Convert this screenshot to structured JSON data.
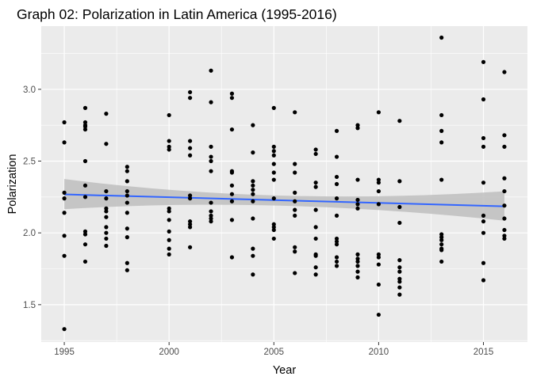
{
  "chart_data": {
    "type": "scatter",
    "title": "Graph 02: Polarization in Latin America (1995-2016)",
    "xlabel": "Year",
    "ylabel": "Polarization",
    "xlim": [
      1993.9,
      2017.1
    ],
    "ylim": [
      1.24,
      3.44
    ],
    "x_ticks": [
      1995,
      2000,
      2005,
      2010,
      2015
    ],
    "y_ticks": [
      1.5,
      2.0,
      2.5,
      3.0
    ],
    "grid": true,
    "colors": {
      "panel": "#ebebeb",
      "grid": "#ffffff",
      "points": "#000000",
      "trend": "#3366ff",
      "band": "#bebebe"
    },
    "points": [
      [
        1995,
        2.77
      ],
      [
        1995,
        2.63
      ],
      [
        1995,
        2.28
      ],
      [
        1995,
        2.24
      ],
      [
        1995,
        2.14
      ],
      [
        1995,
        1.98
      ],
      [
        1995,
        1.84
      ],
      [
        1995,
        1.33
      ],
      [
        1996,
        2.87
      ],
      [
        1996,
        2.77
      ],
      [
        1996,
        2.75
      ],
      [
        1996,
        2.74
      ],
      [
        1996,
        2.72
      ],
      [
        1996,
        2.5
      ],
      [
        1996,
        2.33
      ],
      [
        1996,
        2.25
      ],
      [
        1996,
        2.01
      ],
      [
        1996,
        1.99
      ],
      [
        1996,
        1.92
      ],
      [
        1996,
        1.8
      ],
      [
        1997,
        2.83
      ],
      [
        1997,
        2.62
      ],
      [
        1997,
        2.29
      ],
      [
        1997,
        2.24
      ],
      [
        1997,
        2.17
      ],
      [
        1997,
        2.15
      ],
      [
        1997,
        2.11
      ],
      [
        1997,
        2.04
      ],
      [
        1997,
        2.0
      ],
      [
        1997,
        1.96
      ],
      [
        1997,
        1.91
      ],
      [
        1998,
        2.46
      ],
      [
        1998,
        2.43
      ],
      [
        1998,
        2.36
      ],
      [
        1998,
        2.29
      ],
      [
        1998,
        2.26
      ],
      [
        1998,
        2.21
      ],
      [
        1998,
        2.14
      ],
      [
        1998,
        2.03
      ],
      [
        1998,
        1.97
      ],
      [
        1998,
        1.79
      ],
      [
        1998,
        1.74
      ],
      [
        2000,
        2.82
      ],
      [
        2000,
        2.64
      ],
      [
        2000,
        2.6
      ],
      [
        2000,
        2.58
      ],
      [
        2000,
        2.17
      ],
      [
        2000,
        2.15
      ],
      [
        2000,
        2.09
      ],
      [
        2000,
        2.01
      ],
      [
        2000,
        1.95
      ],
      [
        2000,
        1.89
      ],
      [
        2000,
        1.85
      ],
      [
        2001,
        2.98
      ],
      [
        2001,
        2.94
      ],
      [
        2001,
        2.64
      ],
      [
        2001,
        2.59
      ],
      [
        2001,
        2.54
      ],
      [
        2001,
        2.26
      ],
      [
        2001,
        2.24
      ],
      [
        2001,
        2.08
      ],
      [
        2001,
        2.06
      ],
      [
        2001,
        2.04
      ],
      [
        2001,
        1.9
      ],
      [
        2002,
        3.13
      ],
      [
        2002,
        2.91
      ],
      [
        2002,
        2.6
      ],
      [
        2002,
        2.53
      ],
      [
        2002,
        2.5
      ],
      [
        2002,
        2.43
      ],
      [
        2002,
        2.21
      ],
      [
        2002,
        2.15
      ],
      [
        2002,
        2.12
      ],
      [
        2002,
        2.1
      ],
      [
        2002,
        2.08
      ],
      [
        2003,
        2.97
      ],
      [
        2003,
        2.94
      ],
      [
        2003,
        2.72
      ],
      [
        2003,
        2.43
      ],
      [
        2003,
        2.42
      ],
      [
        2003,
        2.33
      ],
      [
        2003,
        2.27
      ],
      [
        2003,
        2.22
      ],
      [
        2003,
        2.09
      ],
      [
        2003,
        1.83
      ],
      [
        2004,
        2.75
      ],
      [
        2004,
        2.56
      ],
      [
        2004,
        2.36
      ],
      [
        2004,
        2.33
      ],
      [
        2004,
        2.3
      ],
      [
        2004,
        2.27
      ],
      [
        2004,
        2.22
      ],
      [
        2004,
        2.1
      ],
      [
        2004,
        1.89
      ],
      [
        2004,
        1.84
      ],
      [
        2004,
        1.71
      ],
      [
        2005,
        2.87
      ],
      [
        2005,
        2.6
      ],
      [
        2005,
        2.57
      ],
      [
        2005,
        2.54
      ],
      [
        2005,
        2.48
      ],
      [
        2005,
        2.42
      ],
      [
        2005,
        2.37
      ],
      [
        2005,
        2.24
      ],
      [
        2005,
        2.06
      ],
      [
        2005,
        2.04
      ],
      [
        2005,
        2.02
      ],
      [
        2005,
        1.96
      ],
      [
        2006,
        2.84
      ],
      [
        2006,
        2.48
      ],
      [
        2006,
        2.42
      ],
      [
        2006,
        2.28
      ],
      [
        2006,
        2.22
      ],
      [
        2006,
        2.16
      ],
      [
        2006,
        2.12
      ],
      [
        2006,
        1.9
      ],
      [
        2006,
        1.87
      ],
      [
        2006,
        1.72
      ],
      [
        2007,
        2.58
      ],
      [
        2007,
        2.55
      ],
      [
        2007,
        2.35
      ],
      [
        2007,
        2.32
      ],
      [
        2007,
        2.16
      ],
      [
        2007,
        2.04
      ],
      [
        2007,
        1.96
      ],
      [
        2007,
        1.85
      ],
      [
        2007,
        1.84
      ],
      [
        2007,
        1.76
      ],
      [
        2007,
        1.71
      ],
      [
        2008,
        2.71
      ],
      [
        2008,
        2.53
      ],
      [
        2008,
        2.39
      ],
      [
        2008,
        2.34
      ],
      [
        2008,
        2.24
      ],
      [
        2008,
        2.12
      ],
      [
        2008,
        1.96
      ],
      [
        2008,
        1.94
      ],
      [
        2008,
        1.92
      ],
      [
        2008,
        1.83
      ],
      [
        2008,
        1.8
      ],
      [
        2008,
        1.77
      ],
      [
        2009,
        2.75
      ],
      [
        2009,
        2.73
      ],
      [
        2009,
        2.37
      ],
      [
        2009,
        2.23
      ],
      [
        2009,
        2.2
      ],
      [
        2009,
        2.17
      ],
      [
        2009,
        1.85
      ],
      [
        2009,
        1.82
      ],
      [
        2009,
        1.8
      ],
      [
        2009,
        1.77
      ],
      [
        2009,
        1.73
      ],
      [
        2009,
        1.69
      ],
      [
        2010,
        2.84
      ],
      [
        2010,
        2.37
      ],
      [
        2010,
        2.35
      ],
      [
        2010,
        2.29
      ],
      [
        2010,
        2.2
      ],
      [
        2010,
        1.85
      ],
      [
        2010,
        1.83
      ],
      [
        2010,
        1.78
      ],
      [
        2010,
        1.64
      ],
      [
        2010,
        1.43
      ],
      [
        2011,
        2.78
      ],
      [
        2011,
        2.36
      ],
      [
        2011,
        2.18
      ],
      [
        2011,
        2.07
      ],
      [
        2011,
        1.81
      ],
      [
        2011,
        1.76
      ],
      [
        2011,
        1.73
      ],
      [
        2011,
        1.68
      ],
      [
        2011,
        1.66
      ],
      [
        2011,
        1.62
      ],
      [
        2011,
        1.57
      ],
      [
        2013,
        3.36
      ],
      [
        2013,
        2.82
      ],
      [
        2013,
        2.71
      ],
      [
        2013,
        2.63
      ],
      [
        2013,
        2.37
      ],
      [
        2013,
        1.99
      ],
      [
        2013,
        1.97
      ],
      [
        2013,
        1.95
      ],
      [
        2013,
        1.92
      ],
      [
        2013,
        1.89
      ],
      [
        2013,
        1.88
      ],
      [
        2013,
        1.8
      ],
      [
        2015,
        3.19
      ],
      [
        2015,
        2.93
      ],
      [
        2015,
        2.66
      ],
      [
        2015,
        2.6
      ],
      [
        2015,
        2.35
      ],
      [
        2015,
        2.12
      ],
      [
        2015,
        2.08
      ],
      [
        2015,
        2.0
      ],
      [
        2015,
        1.79
      ],
      [
        2015,
        1.67
      ],
      [
        2016,
        3.12
      ],
      [
        2016,
        2.68
      ],
      [
        2016,
        2.6
      ],
      [
        2016,
        2.38
      ],
      [
        2016,
        2.29
      ],
      [
        2016,
        2.19
      ],
      [
        2016,
        2.1
      ],
      [
        2016,
        2.02
      ],
      [
        2016,
        1.98
      ],
      [
        2016,
        1.96
      ]
    ],
    "trend": {
      "method": "linear",
      "x": [
        1995,
        2016
      ],
      "y": [
        2.268,
        2.185
      ],
      "band_low": [
        2.165,
        2.085
      ],
      "band_high": [
        2.375,
        2.29
      ],
      "band_mid_x": 2005,
      "band_mid_low": [
        2.19
      ],
      "band_mid_high": [
        2.26
      ]
    }
  }
}
